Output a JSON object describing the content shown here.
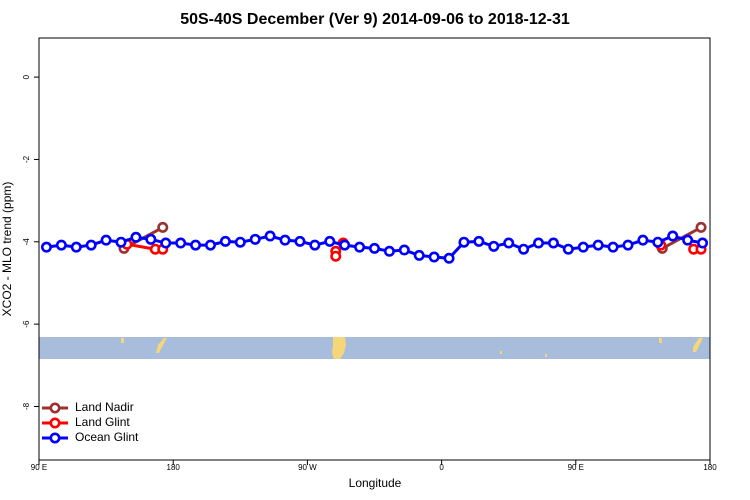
{
  "chart_data": {
    "type": "line",
    "title": "50S-40S December (Ver 9)   2014-09-06 to 2018-12-31",
    "x_label": "Longitude",
    "y_label": "XCO2 - MLO trend (ppm)",
    "xlim": [
      90,
      540
    ],
    "xticks": [
      {
        "value": 90,
        "label": "90 E"
      },
      180,
      {
        "value": 270,
        "label": "90 W"
      },
      {
        "value": 360,
        "label": "0"
      },
      {
        "value": 450,
        "label": "90 E"
      },
      {
        "value": 540,
        "label": "180"
      }
    ],
    "ylim": [
      -9.3,
      0.95
    ],
    "yticks": [
      0,
      -2,
      -4,
      -6,
      -8
    ],
    "legend": "bottom-left",
    "series": [
      {
        "name": "Land Nadir",
        "color": "#993333",
        "x": [
          147,
          173,
          null,
          508,
          534
        ],
        "values": [
          -4.16,
          -3.65,
          null,
          -4.16,
          -3.65
        ]
      },
      {
        "name": "Land Glint",
        "color": "#ff0000",
        "x": [
          149,
          168,
          173,
          null,
          289,
          289,
          294,
          null,
          507,
          null,
          529,
          534
        ],
        "values": [
          -4.06,
          -4.18,
          -4.18,
          null,
          -4.23,
          -4.35,
          -4.03,
          null,
          -4.08,
          null,
          -4.18,
          -4.18
        ]
      },
      {
        "name": "Ocean Glint",
        "color": "#0000ff",
        "x": [
          95,
          105,
          115,
          125,
          135,
          145,
          155,
          165,
          175,
          185,
          195,
          205,
          215,
          225,
          235,
          245,
          255,
          265,
          275,
          285,
          295,
          305,
          315,
          325,
          335,
          345,
          355,
          365,
          375,
          385,
          395,
          405,
          415,
          425,
          435,
          445,
          455,
          465,
          475,
          485,
          495,
          505,
          515,
          525,
          535
        ],
        "values": [
          -4.13,
          -4.08,
          -4.13,
          -4.08,
          -3.96,
          -4.01,
          -3.89,
          -3.94,
          -4.03,
          -4.03,
          -4.08,
          -4.08,
          -3.99,
          -4.01,
          -3.94,
          -3.86,
          -3.96,
          -3.99,
          -4.08,
          -3.99,
          -4.08,
          -4.13,
          -4.16,
          -4.23,
          -4.2,
          -4.33,
          -4.37,
          -4.4,
          -4.01,
          -3.99,
          -4.11,
          -4.03,
          -4.18,
          -4.03,
          -4.03,
          -4.18,
          -4.13,
          -4.08,
          -4.13,
          -4.08,
          -3.96,
          -4.01,
          -3.86,
          -3.96,
          -4.03
        ]
      }
    ]
  }
}
